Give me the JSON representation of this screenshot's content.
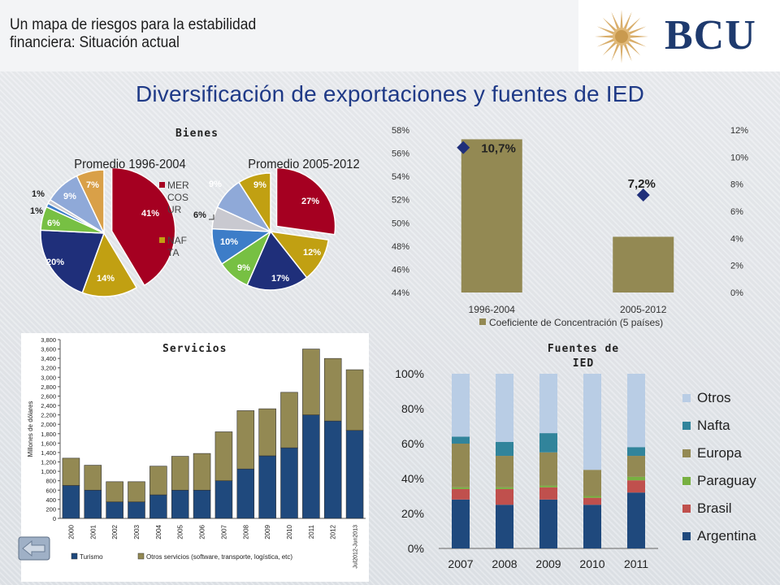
{
  "header": {
    "title_line1": "Un mapa de riesgos para la estabilidad",
    "title_line2": "financiera: Situación actual",
    "logo_text": "BCU"
  },
  "main_title": "Diversificación de exportaciones y fuentes de IED",
  "colors": {
    "title_blue": "#1f3a87",
    "olive": "#938953",
    "navy": "#1f497d",
    "dark_red": "#a50021",
    "pale_blue": "#b9cde5",
    "teal": "#31849b",
    "green": "#77b041",
    "brick": "#c0504d"
  },
  "chart_data": [
    {
      "id": "bienes",
      "type": "pie",
      "title": "Bienes",
      "pies": [
        {
          "label": "Promedio 1996-2004",
          "slices": [
            {
              "value": 41,
              "label": "41%",
              "color": "#a50021",
              "exploded": true
            },
            {
              "value": 14,
              "label": "14%",
              "color": "#c1a012"
            },
            {
              "value": 20,
              "label": "20%",
              "color": "#1f2f7a"
            },
            {
              "value": 6,
              "label": "6%",
              "color": "#77c043"
            },
            {
              "value": 1,
              "label": "1%",
              "color": "#3d7dc8"
            },
            {
              "value": 1,
              "label": "1%",
              "color": "#c9c9d0"
            },
            {
              "value": 9,
              "label": "9%",
              "color": "#8fa9d8"
            },
            {
              "value": 7,
              "label": "7%",
              "color": "#d9a048"
            }
          ]
        },
        {
          "label": "Promedio 2005-2012",
          "slices": [
            {
              "value": 27,
              "label": "27%",
              "color": "#a50021",
              "exploded": true
            },
            {
              "value": 12,
              "label": "12%",
              "color": "#c1a012"
            },
            {
              "value": 17,
              "label": "17%",
              "color": "#1f2f7a"
            },
            {
              "value": 9,
              "label": "9%",
              "color": "#77c043"
            },
            {
              "value": 10,
              "label": "10%",
              "color": "#3d7dc8"
            },
            {
              "value": 6,
              "label": "6%",
              "color": "#c9c9d0"
            },
            {
              "value": 9,
              "label": "9%",
              "color": "#8fa9d8"
            },
            {
              "value": 9,
              "label": "9%",
              "color": "#c1a012"
            }
          ]
        }
      ],
      "legend": [
        {
          "label": "MERCOSUR",
          "display": "MER\nCOS\nUR",
          "color": "#a50021"
        },
        {
          "label": "NAFTA",
          "display": "NAF\nTA",
          "color": "#c1a012"
        }
      ]
    },
    {
      "id": "concentracion",
      "type": "bar",
      "categories": [
        "1996-2004",
        "2005-2012"
      ],
      "series": [
        {
          "name": "Coeficiente de Concentración (5 países)",
          "values": [
            57.2,
            48.8
          ],
          "color": "#938953",
          "axis": "left"
        }
      ],
      "markers": [
        {
          "values": [
            10.7,
            7.2
          ],
          "labels": [
            "10,7%",
            "7,2%"
          ],
          "axis": "right",
          "color": "#1f2f7a"
        }
      ],
      "ylim_left": [
        44,
        58
      ],
      "yticks_left": [
        "44%",
        "46%",
        "48%",
        "50%",
        "52%",
        "54%",
        "56%",
        "58%"
      ],
      "ylim_right": [
        0,
        12
      ],
      "yticks_right": [
        "0%",
        "2%",
        "4%",
        "6%",
        "8%",
        "10%",
        "12%"
      ],
      "legend_placement": "bottom"
    },
    {
      "id": "servicios",
      "type": "bar",
      "stacked": true,
      "title": "Servicios",
      "ylabel": "Millones de dólares",
      "categories": [
        "2000",
        "2001",
        "2002",
        "2003",
        "2004",
        "2005",
        "2006",
        "2007",
        "2008",
        "2009",
        "2010",
        "2011",
        "2012",
        "Jul2012-Jun2013"
      ],
      "series": [
        {
          "name": "Turismo",
          "values": [
            700,
            600,
            350,
            350,
            500,
            600,
            600,
            800,
            1050,
            1330,
            1500,
            2200,
            2070,
            1870
          ],
          "color": "#1f497d"
        },
        {
          "name": "Otros servicios (software, transporte, logística, etc)",
          "values": [
            580,
            530,
            430,
            430,
            610,
            720,
            780,
            1040,
            1240,
            1000,
            1180,
            1400,
            1330,
            1290
          ],
          "color": "#938953"
        }
      ],
      "ylim": [
        0,
        3800
      ],
      "yticks": [
        "0",
        "200",
        "400",
        "600",
        "800",
        "1,000",
        "1,200",
        "1,400",
        "1,600",
        "1,800",
        "2,000",
        "2,200",
        "2,400",
        "2,600",
        "2,800",
        "3,000",
        "3,200",
        "3,400",
        "3,600",
        "3,800"
      ],
      "legend_placement": "bottom"
    },
    {
      "id": "ied",
      "type": "bar",
      "stacked": true,
      "title": "Fuentes de IED",
      "categories": [
        "2007",
        "2008",
        "2009",
        "2010",
        "2011"
      ],
      "series": [
        {
          "name": "Argentina",
          "values": [
            28,
            25,
            28,
            25,
            32
          ],
          "color": "#1f497d"
        },
        {
          "name": "Brasil",
          "values": [
            6,
            9,
            7,
            4,
            7
          ],
          "color": "#c0504d"
        },
        {
          "name": "Paraguay",
          "values": [
            1,
            1,
            1,
            1,
            2
          ],
          "color": "#77b041"
        },
        {
          "name": "Europa",
          "values": [
            25,
            18,
            19,
            15,
            12
          ],
          "color": "#938953"
        },
        {
          "name": "Nafta",
          "values": [
            4,
            8,
            11,
            0,
            5
          ],
          "color": "#31849b"
        },
        {
          "name": "Otros",
          "values": [
            36,
            39,
            34,
            55,
            42
          ],
          "color": "#b9cde5"
        }
      ],
      "ylim": [
        0,
        100
      ],
      "yticks": [
        "0%",
        "20%",
        "40%",
        "60%",
        "80%",
        "100%"
      ],
      "legend_placement": "right"
    }
  ]
}
